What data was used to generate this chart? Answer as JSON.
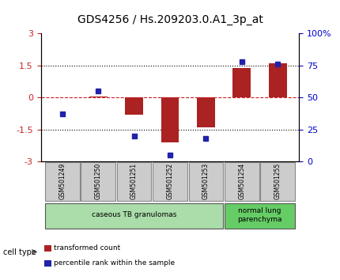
{
  "title": "GDS4256 / Hs.209203.0.A1_3p_at",
  "samples": [
    "GSM501249",
    "GSM501250",
    "GSM501251",
    "GSM501252",
    "GSM501253",
    "GSM501254",
    "GSM501255"
  ],
  "transformed_count": [
    0.0,
    0.05,
    -0.8,
    -2.1,
    -1.4,
    1.4,
    1.6
  ],
  "percentile_rank": [
    37,
    55,
    20,
    5,
    18,
    78,
    76
  ],
  "ylim_left": [
    -3,
    3
  ],
  "ylim_right": [
    0,
    100
  ],
  "yticks_left": [
    -3,
    -1.5,
    0,
    1.5,
    3
  ],
  "yticks_right": [
    0,
    25,
    50,
    75,
    100
  ],
  "ytick_labels_right": [
    "0",
    "25",
    "50",
    "75",
    "100%"
  ],
  "bar_color": "#aa2222",
  "dot_color": "#2222aa",
  "hline_color": "#cc2222",
  "dotted_line_color": "#000000",
  "cell_type_groups": [
    {
      "label": "caseous TB granulomas",
      "samples": [
        0,
        1,
        2,
        3,
        4
      ],
      "color": "#aaddaa"
    },
    {
      "label": "normal lung\nparenchyma",
      "samples": [
        5,
        6
      ],
      "color": "#66cc66"
    }
  ],
  "cell_type_label": "cell type",
  "legend_items": [
    {
      "color": "#aa2222",
      "label": "transformed count"
    },
    {
      "color": "#2222aa",
      "label": "percentile rank within the sample"
    }
  ],
  "bg_color": "#ffffff",
  "tick_box_color": "#cccccc"
}
